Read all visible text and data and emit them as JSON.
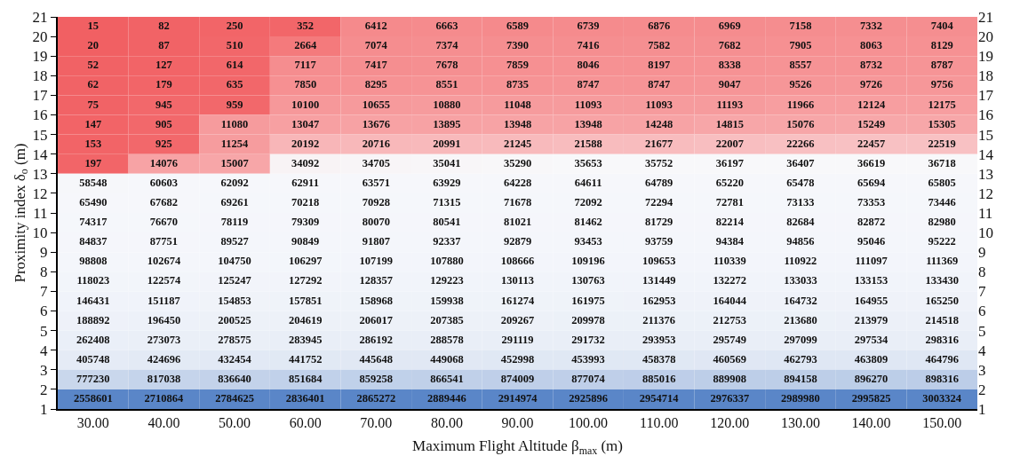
{
  "chart_data": {
    "type": "heatmap",
    "xlabel": "Maximum Flight Altitude β$_{max}$ (m)",
    "ylabel": "Proximity index δ$_{o}$ (m)",
    "categories": [
      "30.00",
      "40.00",
      "50.00",
      "60.00",
      "70.00",
      "80.00",
      "90.00",
      "100.00",
      "110.00",
      "120.00",
      "130.00",
      "140.00",
      "150.00"
    ],
    "ylim": [
      1,
      21
    ],
    "yticks": [
      1,
      2,
      3,
      4,
      5,
      6,
      7,
      8,
      9,
      10,
      11,
      12,
      13,
      14,
      15,
      16,
      17,
      18,
      19,
      20,
      21
    ],
    "y2lim": [
      1,
      21
    ],
    "y2ticks": [
      1,
      2,
      3,
      4,
      5,
      6,
      7,
      8,
      9,
      10,
      11,
      12,
      13,
      14,
      15,
      16,
      17,
      18,
      19,
      20,
      21
    ],
    "data_labels": true,
    "grid": false,
    "cells": [
      [
        15,
        82,
        250,
        352,
        6412,
        6663,
        6589,
        6739,
        6876,
        6969,
        7158,
        7332,
        7404
      ],
      [
        20,
        87,
        510,
        2664,
        7074,
        7374,
        7390,
        7416,
        7582,
        7682,
        7905,
        8063,
        8129
      ],
      [
        52,
        127,
        614,
        7117,
        7417,
        7678,
        7859,
        8046,
        8197,
        8338,
        8557,
        8732,
        8787
      ],
      [
        62,
        179,
        635,
        7850,
        8295,
        8551,
        8735,
        8747,
        8747,
        9047,
        9526,
        9726,
        9756
      ],
      [
        75,
        945,
        959,
        10100,
        10655,
        10880,
        11048,
        11093,
        11093,
        11193,
        11966,
        12124,
        12175
      ],
      [
        147,
        905,
        11080,
        13047,
        13676,
        13895,
        13948,
        13948,
        14248,
        14815,
        15076,
        15249,
        15305
      ],
      [
        153,
        925,
        11254,
        20192,
        20716,
        20991,
        21245,
        21588,
        21677,
        22007,
        22266,
        22457,
        22519
      ],
      [
        197,
        14076,
        15007,
        34092,
        34705,
        35041,
        35290,
        35653,
        35752,
        36197,
        36407,
        36619,
        36718
      ],
      [
        58548,
        60603,
        62092,
        62911,
        63571,
        63929,
        64228,
        64611,
        64789,
        65220,
        65478,
        65694,
        65805
      ],
      [
        65490,
        67682,
        69261,
        70218,
        70928,
        71315,
        71678,
        72092,
        72294,
        72781,
        73133,
        73353,
        73446
      ],
      [
        74317,
        76670,
        78119,
        79309,
        80070,
        80541,
        81021,
        81462,
        81729,
        82214,
        82684,
        82872,
        82980
      ],
      [
        84837,
        87751,
        89527,
        90849,
        91807,
        92337,
        92879,
        93453,
        93759,
        94384,
        94856,
        95046,
        95222
      ],
      [
        98808,
        102674,
        104750,
        106297,
        107199,
        107880,
        108666,
        109196,
        109653,
        110339,
        110922,
        111097,
        111369
      ],
      [
        118023,
        122574,
        125247,
        127292,
        128357,
        129223,
        130113,
        130763,
        131449,
        132272,
        133033,
        133153,
        133430
      ],
      [
        146431,
        151187,
        154853,
        157851,
        158968,
        159938,
        161274,
        161975,
        162953,
        164044,
        164732,
        164955,
        165250
      ],
      [
        188892,
        196450,
        200525,
        204619,
        206017,
        207385,
        209267,
        209978,
        211376,
        212753,
        213680,
        213979,
        214518
      ],
      [
        262408,
        273073,
        278575,
        283945,
        286192,
        288578,
        291119,
        291732,
        293953,
        295749,
        297099,
        297534,
        298316
      ],
      [
        405748,
        424696,
        432454,
        441752,
        445648,
        449068,
        452998,
        453993,
        458378,
        460569,
        462793,
        463809,
        464796
      ],
      [
        777230,
        817038,
        836640,
        851684,
        859258,
        866541,
        874009,
        877074,
        885016,
        889908,
        894158,
        896270,
        898316
      ],
      [
        2558601,
        2710864,
        2784625,
        2836401,
        2865272,
        2889446,
        2914974,
        2925896,
        2954714,
        2976337,
        2989980,
        2995825,
        3003324
      ]
    ]
  }
}
